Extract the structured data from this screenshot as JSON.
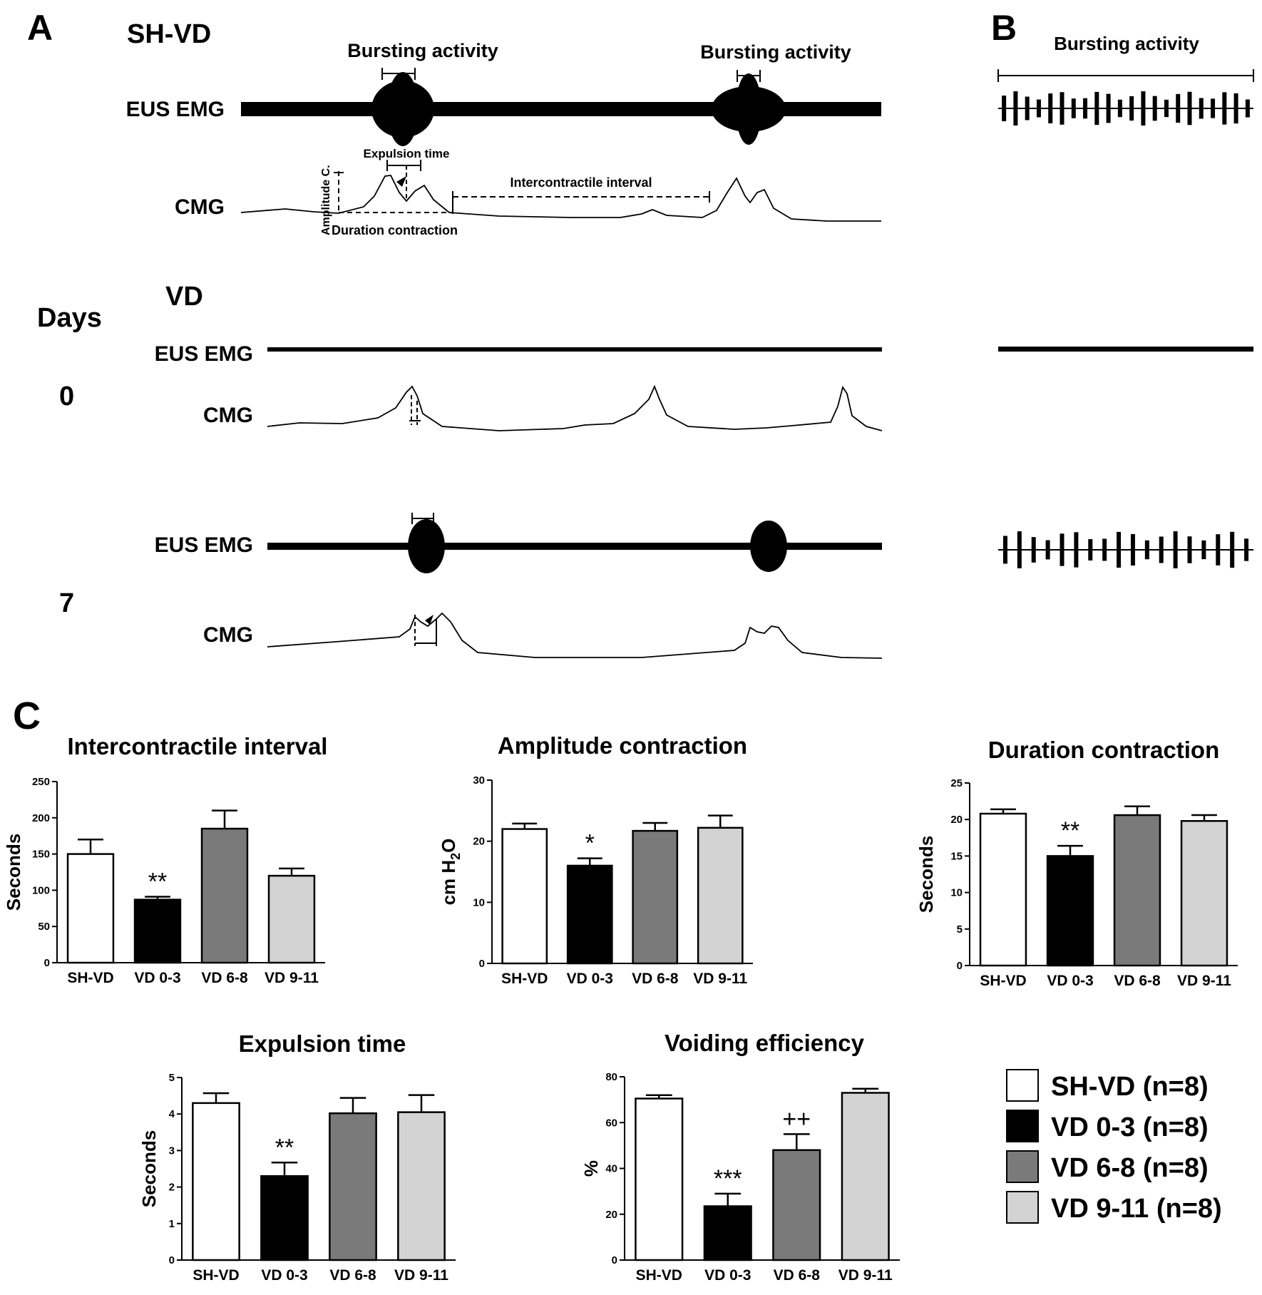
{
  "panel_a": {
    "letter": "A",
    "top_title": "SH-VD",
    "bursting_label_1": "Bursting activity",
    "bursting_label_2": "Bursting activity",
    "eus_label_1": "EUS EMG",
    "cmg_label_1": "CMG",
    "expulsion_time": "Expulsion time",
    "amplitude_c": "Amplitude C.",
    "duration_contraction": "Duration contraction",
    "intercontractile_interval": "Intercontractile interval",
    "vd_title": "VD",
    "days_label": "Days",
    "day0": "0",
    "eus_label_2": "EUS EMG",
    "cmg_label_2": "CMG",
    "day7": "7",
    "eus_label_3": "EUS EMG",
    "cmg_label_3": "CMG"
  },
  "panel_b": {
    "letter": "B",
    "bursting_label": "Bursting activity"
  },
  "panel_c": {
    "letter": "C"
  },
  "colors": {
    "SH-VD": "#ffffff",
    "VD 0-3": "#000000",
    "VD 6-8": "#7a7a7a",
    "VD 9-11": "#d3d3d3"
  },
  "legend": [
    {
      "label": "SH-VD (n=8)",
      "color": "#ffffff"
    },
    {
      "label": "VD 0-3 (n=8)",
      "color": "#000000"
    },
    {
      "label": "VD 6-8 (n=8)",
      "color": "#7a7a7a"
    },
    {
      "label": "VD 9-11 (n=8)",
      "color": "#d3d3d3"
    }
  ],
  "chart_data": [
    {
      "type": "bar",
      "title": "Intercontractile interval",
      "ylabel": "Seconds",
      "ylim": [
        0,
        250
      ],
      "yticks": [
        0,
        50,
        100,
        150,
        200,
        250
      ],
      "categories": [
        "SH-VD",
        "VD 0-3",
        "VD 6-8",
        "VD 9-11"
      ],
      "values": [
        150,
        87,
        185,
        120
      ],
      "errors": [
        20,
        4,
        25,
        10
      ],
      "annotations": [
        "",
        "**",
        "",
        ""
      ]
    },
    {
      "type": "bar",
      "title": "Amplitude contraction",
      "ylabel": "cm H2O",
      "ylim": [
        0,
        30
      ],
      "yticks": [
        0,
        10,
        20,
        30
      ],
      "categories": [
        "SH-VD",
        "VD 0-3",
        "VD 6-8",
        "VD 9-11"
      ],
      "values": [
        22,
        16,
        21.7,
        22.2
      ],
      "errors": [
        0.9,
        1.2,
        1.3,
        2
      ],
      "annotations": [
        "",
        "*",
        "",
        ""
      ]
    },
    {
      "type": "bar",
      "title": "Duration contraction",
      "ylabel": "Seconds",
      "ylim": [
        0,
        25
      ],
      "yticks": [
        0,
        5,
        10,
        15,
        20,
        25
      ],
      "categories": [
        "SH-VD",
        "VD 0-3",
        "VD 6-8",
        "VD 9-11"
      ],
      "values": [
        20.8,
        15,
        20.6,
        19.8
      ],
      "errors": [
        0.6,
        1.4,
        1.2,
        0.8
      ],
      "annotations": [
        "",
        "**",
        "",
        ""
      ]
    },
    {
      "type": "bar",
      "title": "Expulsion time",
      "ylabel": "Seconds",
      "ylim": [
        0,
        5
      ],
      "yticks": [
        0,
        1,
        2,
        3,
        4,
        5
      ],
      "categories": [
        "SH-VD",
        "VD 0-3",
        "VD 6-8",
        "VD 9-11"
      ],
      "values": [
        4.3,
        2.3,
        4.02,
        4.05
      ],
      "errors": [
        0.27,
        0.37,
        0.42,
        0.47
      ],
      "annotations": [
        "",
        "**",
        "",
        ""
      ]
    },
    {
      "type": "bar",
      "title": "Voiding efficiency",
      "ylabel": "%",
      "ylim": [
        0,
        80
      ],
      "yticks": [
        0,
        20,
        40,
        60,
        80
      ],
      "categories": [
        "SH-VD",
        "VD 0-3",
        "VD 6-8",
        "VD 9-11"
      ],
      "values": [
        70.5,
        23.5,
        48,
        73
      ],
      "errors": [
        1.5,
        5.5,
        7,
        1.8
      ],
      "annotations": [
        "",
        "***",
        "++",
        ""
      ]
    }
  ]
}
